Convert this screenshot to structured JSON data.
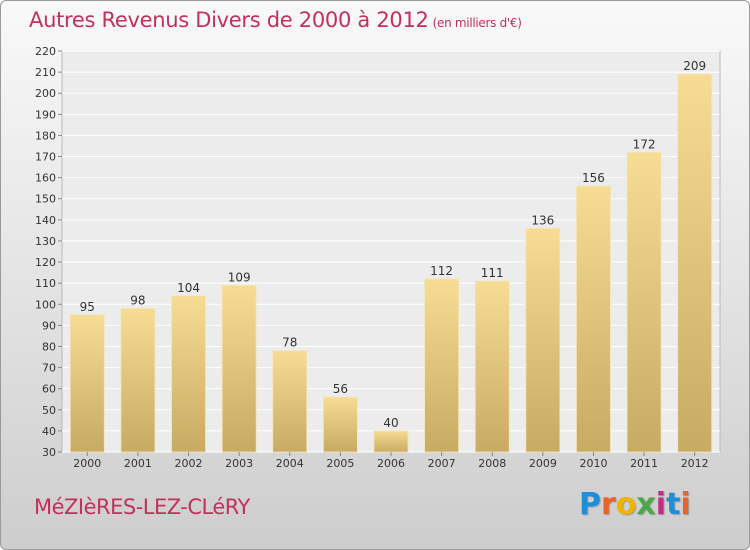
{
  "header": {
    "title": "Autres Revenus Divers de 2000 à 2012",
    "unit": "(en milliers d'€)"
  },
  "footer": {
    "town": "MéZIèRES-LEZ-CLéRY",
    "brand": "Proxiti",
    "brand_colors": [
      "#1f8ed8",
      "#e8632a",
      "#f0b400",
      "#4aa84a",
      "#c22d87",
      "#1f8ed8",
      "#e8632a"
    ]
  },
  "chart_data": {
    "type": "bar",
    "title": "Autres Revenus Divers de 2000 à 2012",
    "xlabel": "",
    "ylabel": "",
    "categories": [
      "2000",
      "2001",
      "2002",
      "2003",
      "2004",
      "2005",
      "2006",
      "2007",
      "2008",
      "2009",
      "2010",
      "2011",
      "2012"
    ],
    "values": [
      95,
      98,
      104,
      109,
      78,
      56,
      40,
      112,
      111,
      136,
      156,
      172,
      209
    ],
    "ylim": [
      30,
      220
    ],
    "yticks": [
      30,
      40,
      50,
      60,
      70,
      80,
      90,
      100,
      110,
      120,
      130,
      140,
      150,
      160,
      170,
      180,
      190,
      200,
      210,
      220
    ],
    "grid": true,
    "legend": "none",
    "bar_color_light": "#f7dc93",
    "bar_color_dark": "#c8ab62"
  }
}
